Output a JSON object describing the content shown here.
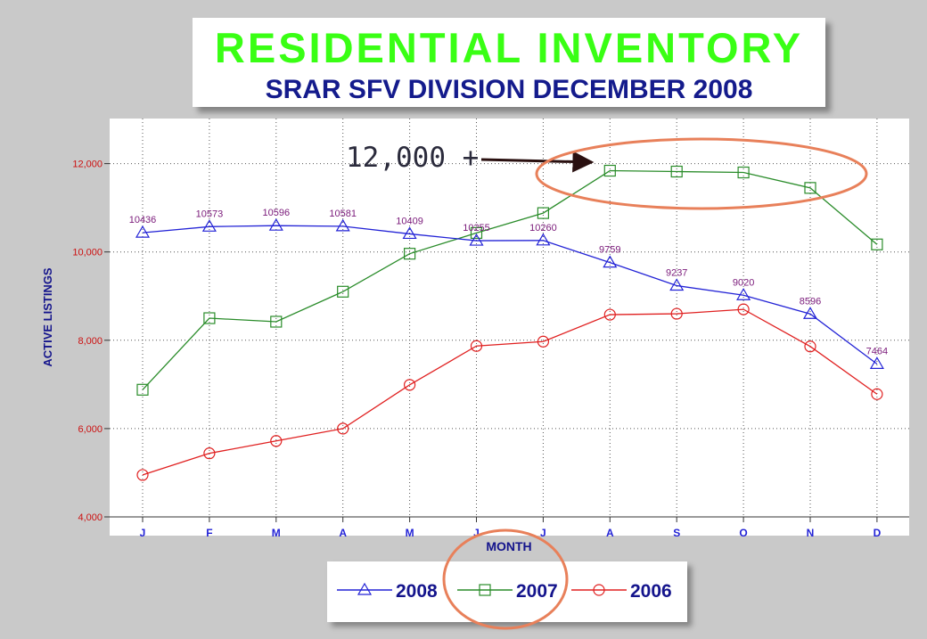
{
  "title": "RESIDENTIAL  INVENTORY",
  "subtitle": "SRAR SFV DIVISION DECEMBER 2008",
  "chart_data": {
    "type": "line",
    "categories": [
      "J",
      "F",
      "M",
      "A",
      "M",
      "J",
      "J",
      "A",
      "S",
      "O",
      "N",
      "D"
    ],
    "xlabel": "MONTH",
    "ylabel": "ACTIVE LISTINGS",
    "ylim": [
      4000,
      13000
    ],
    "yticks": [
      4000,
      6000,
      8000,
      10000,
      12000
    ],
    "ytick_labels": [
      "4,000",
      "6,000",
      "8,000",
      "10,000",
      "12,000"
    ],
    "grid": true,
    "legend": "bottom",
    "series": [
      {
        "name": "2008",
        "color": "#2323d6",
        "marker": "triangle",
        "values": [
          10436,
          10573,
          10596,
          10581,
          10409,
          10255,
          10260,
          9759,
          9237,
          9020,
          8596,
          7464
        ],
        "labels": [
          "10436",
          "10573",
          "10596",
          "10581",
          "10409",
          "10255",
          "10260",
          "9759",
          "9237",
          "9020",
          "8596",
          "7464"
        ]
      },
      {
        "name": "2007",
        "color": "#2a8c2a",
        "marker": "square",
        "values": [
          6880,
          8500,
          8420,
          9100,
          9960,
          10430,
          10880,
          11840,
          11820,
          11800,
          11450,
          10170
        ]
      },
      {
        "name": "2006",
        "color": "#e02020",
        "marker": "circle",
        "values": [
          4950,
          5440,
          5720,
          6000,
          6990,
          7870,
          7970,
          8580,
          8600,
          8700,
          7860,
          6780
        ]
      }
    ],
    "annotation": {
      "text": "12,000 +"
    }
  }
}
